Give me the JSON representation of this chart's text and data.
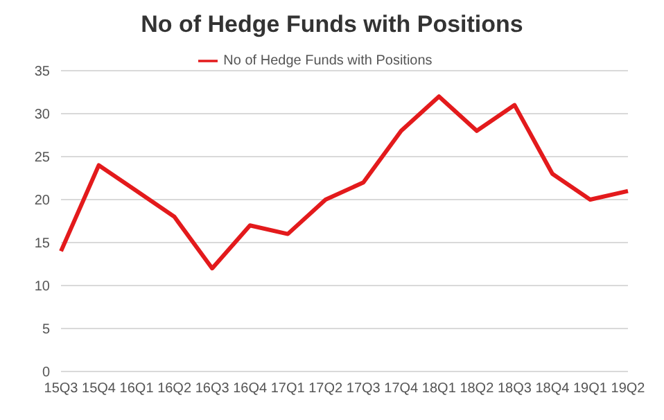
{
  "chart_data": {
    "type": "line",
    "title": "No of Hedge Funds with Positions",
    "categories": [
      "15Q3",
      "15Q4",
      "16Q1",
      "16Q2",
      "16Q3",
      "16Q4",
      "17Q1",
      "17Q2",
      "17Q3",
      "17Q4",
      "18Q1",
      "18Q2",
      "18Q3",
      "18Q4",
      "19Q1",
      "19Q2"
    ],
    "series": [
      {
        "name": "No of Hedge Funds with Positions",
        "color": "#e31a1c",
        "values": [
          14,
          24,
          21,
          18,
          12,
          17,
          16,
          20,
          22,
          28,
          32,
          28,
          31,
          23,
          20,
          21
        ]
      }
    ],
    "ylim": [
      0,
      35
    ],
    "yticks": [
      0,
      5,
      10,
      15,
      20,
      25,
      30,
      35
    ],
    "grid": "y",
    "legend": "top",
    "marker": "none",
    "line_style": "solid"
  }
}
